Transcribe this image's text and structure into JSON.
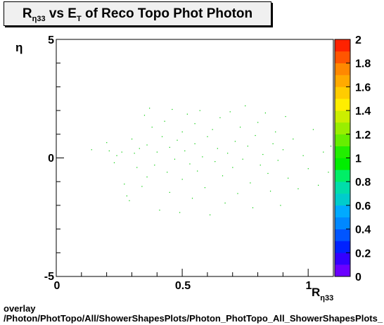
{
  "title": {
    "prefix": "R",
    "sub": "η33",
    "middle": " vs E",
    "sub2": "T",
    "suffix": " of Reco Topo Phot Photon"
  },
  "footer": {
    "line1": "overlay",
    "line2": "/Photon/PhotTopo/All/ShowerShapesPlots/Photon_PhotTopo_All_ShowerShapesPlots_"
  },
  "chart_data": {
    "type": "scatter",
    "title": "R_η33 vs E_T of Reco Topo Phot Photon",
    "xlabel": "R_η33",
    "ylabel": "η",
    "xlim": [
      0,
      1.1
    ],
    "ylim": [
      -5,
      5
    ],
    "x_ticks": [
      "0",
      "0.5",
      "1"
    ],
    "y_ticks": [
      "-5",
      "0",
      "5"
    ],
    "colorbar": {
      "range": [
        0,
        2
      ],
      "ticks": [
        "0",
        "0.2",
        "0.4",
        "0.6",
        "0.8",
        "1",
        "1.2",
        "1.4",
        "1.6",
        "1.8",
        "2"
      ]
    },
    "marker_color": "#00cc00",
    "points": [
      [
        0.14,
        0.35
      ],
      [
        0.2,
        0.65
      ],
      [
        0.21,
        0.3
      ],
      [
        0.23,
        -0.2
      ],
      [
        0.24,
        0.1
      ],
      [
        0.26,
        0.25
      ],
      [
        0.27,
        -1.1
      ],
      [
        0.28,
        -1.6
      ],
      [
        0.29,
        -1.8
      ],
      [
        0.3,
        0.8
      ],
      [
        0.31,
        0.2
      ],
      [
        0.32,
        -0.4
      ],
      [
        0.33,
        0.4
      ],
      [
        0.34,
        -1.2
      ],
      [
        0.35,
        1.8
      ],
      [
        0.36,
        0.55
      ],
      [
        0.36,
        -0.8
      ],
      [
        0.37,
        2.1
      ],
      [
        0.38,
        1.3
      ],
      [
        0.39,
        -0.3
      ],
      [
        0.4,
        0.25
      ],
      [
        0.41,
        -2.2
      ],
      [
        0.42,
        0.9
      ],
      [
        0.43,
        1.55
      ],
      [
        0.44,
        -0.6
      ],
      [
        0.45,
        0.45
      ],
      [
        0.45,
        -1.45
      ],
      [
        0.46,
        2.05
      ],
      [
        0.47,
        -0.05
      ],
      [
        0.48,
        0.75
      ],
      [
        0.49,
        -2.3
      ],
      [
        0.5,
        1.1
      ],
      [
        0.5,
        -0.9
      ],
      [
        0.51,
        0.3
      ],
      [
        0.52,
        1.85
      ],
      [
        0.53,
        -0.25
      ],
      [
        0.54,
        -1.7
      ],
      [
        0.55,
        0.6
      ],
      [
        0.55,
        1.45
      ],
      [
        0.56,
        -0.55
      ],
      [
        0.57,
        2.0
      ],
      [
        0.58,
        0.05
      ],
      [
        0.59,
        -1.25
      ],
      [
        0.6,
        0.9
      ],
      [
        0.61,
        -2.4
      ],
      [
        0.62,
        1.2
      ],
      [
        0.63,
        -0.15
      ],
      [
        0.64,
        0.4
      ],
      [
        0.65,
        1.7
      ],
      [
        0.66,
        -0.75
      ],
      [
        0.67,
        -1.9
      ],
      [
        0.68,
        0.2
      ],
      [
        0.69,
        1.95
      ],
      [
        0.7,
        -0.4
      ],
      [
        0.71,
        0.7
      ],
      [
        0.72,
        -1.5
      ],
      [
        0.73,
        1.3
      ],
      [
        0.74,
        -0.05
      ],
      [
        0.75,
        2.2
      ],
      [
        0.76,
        0.5
      ],
      [
        0.77,
        -1.05
      ],
      [
        0.78,
        -2.1
      ],
      [
        0.79,
        0.95
      ],
      [
        0.8,
        1.5
      ],
      [
        0.81,
        -0.3
      ],
      [
        0.82,
        0.15
      ],
      [
        0.83,
        1.9
      ],
      [
        0.84,
        -0.65
      ],
      [
        0.85,
        -1.4
      ],
      [
        0.86,
        0.6
      ],
      [
        0.87,
        1.1
      ],
      [
        0.88,
        -0.1
      ],
      [
        0.89,
        -2.0
      ],
      [
        0.9,
        0.35
      ],
      [
        0.91,
        1.75
      ],
      [
        0.92,
        -0.85
      ],
      [
        0.94,
        0.8
      ],
      [
        0.96,
        -1.3
      ],
      [
        0.98,
        0.1
      ],
      [
        1.0,
        -0.45
      ],
      [
        1.02,
        1.2
      ],
      [
        1.04,
        -1.15
      ],
      [
        1.06,
        0.25
      ],
      [
        1.08,
        -0.6
      ],
      [
        1.09,
        0.5
      ]
    ]
  }
}
